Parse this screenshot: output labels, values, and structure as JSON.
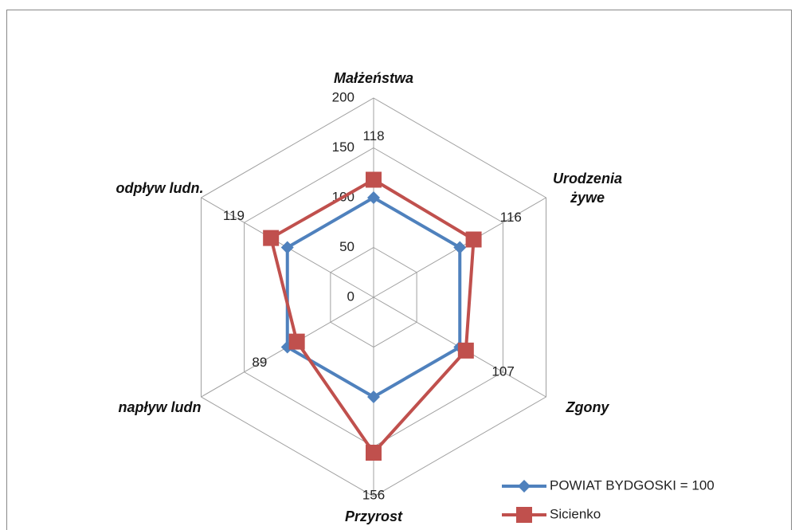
{
  "chart_data": {
    "type": "radar",
    "categories": [
      "Małżeństwa",
      "Urodzenia żywe",
      "Zgony",
      "Przyrost",
      "napływ ludn",
      "odpływ ludn."
    ],
    "series": [
      {
        "name": "POWIAT BYDGOSKI = 100",
        "color": "#4f81bd",
        "marker": "diamond",
        "values": [
          100,
          100,
          100,
          100,
          100,
          100
        ]
      },
      {
        "name": "Sicienko",
        "color": "#c0504d",
        "marker": "square",
        "values": [
          118,
          116,
          107,
          156,
          89,
          119
        ],
        "show_labels": true
      }
    ],
    "rlim": [
      0,
      200
    ],
    "rticks": [
      0,
      50,
      100,
      150,
      200
    ],
    "grid": true,
    "legend": "bottom-right"
  }
}
